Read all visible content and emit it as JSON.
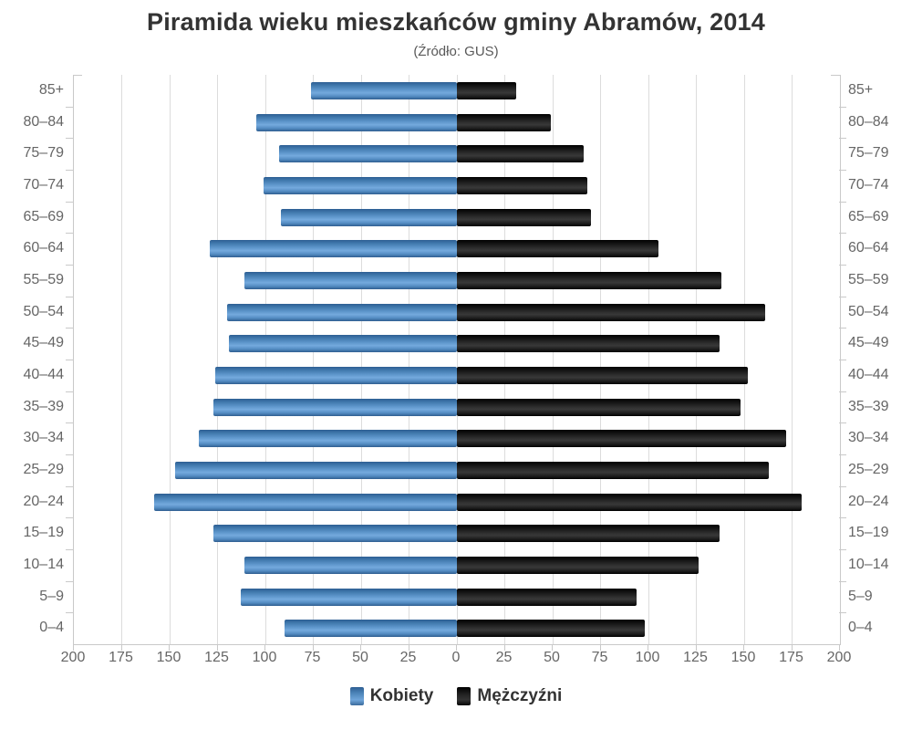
{
  "title": "Piramida wieku mieszkańców gminy Abramów, 2014",
  "subtitle": "(Źródło: GUS)",
  "legend": {
    "items": [
      {
        "label": "Kobiety",
        "color": "#4a80b8"
      },
      {
        "label": "Mężczyźni",
        "color": "#1a1a1a"
      }
    ]
  },
  "colors": {
    "female": "#4a80b8",
    "male": "#1a1a1a",
    "grid": "#dcdcdc",
    "axis": "#c9c9c9",
    "label": "#666666",
    "title": "#333333"
  },
  "chart_data": {
    "type": "bar",
    "subtype": "population-pyramid",
    "title": "Piramida wieku mieszkańców gminy Abramów, 2014",
    "subtitle": "(Źródło: GUS)",
    "grid": true,
    "legend_position": "bottom",
    "axis_max": 200,
    "tick_step": 25,
    "x_tick_labels": [
      "200",
      "175",
      "150",
      "125",
      "100",
      "75",
      "50",
      "25",
      "0",
      "25",
      "50",
      "75",
      "100",
      "125",
      "150",
      "175",
      "200"
    ],
    "categories": [
      "85+",
      "80–84",
      "75–79",
      "70–74",
      "65–69",
      "60–64",
      "55–59",
      "50–54",
      "45–49",
      "40–44",
      "35–39",
      "30–34",
      "25–29",
      "20–24",
      "15–19",
      "10–14",
      "5–9",
      "0–4"
    ],
    "series": [
      {
        "name": "Kobiety",
        "side": "left",
        "color": "#4a80b8",
        "values": [
          76,
          105,
          93,
          101,
          92,
          129,
          111,
          120,
          119,
          126,
          127,
          135,
          147,
          158,
          127,
          111,
          113,
          90
        ]
      },
      {
        "name": "Mężczyźni",
        "side": "right",
        "color": "#1a1a1a",
        "values": [
          31,
          49,
          66,
          68,
          70,
          105,
          138,
          161,
          137,
          152,
          148,
          172,
          163,
          180,
          137,
          126,
          94,
          98
        ]
      }
    ]
  }
}
